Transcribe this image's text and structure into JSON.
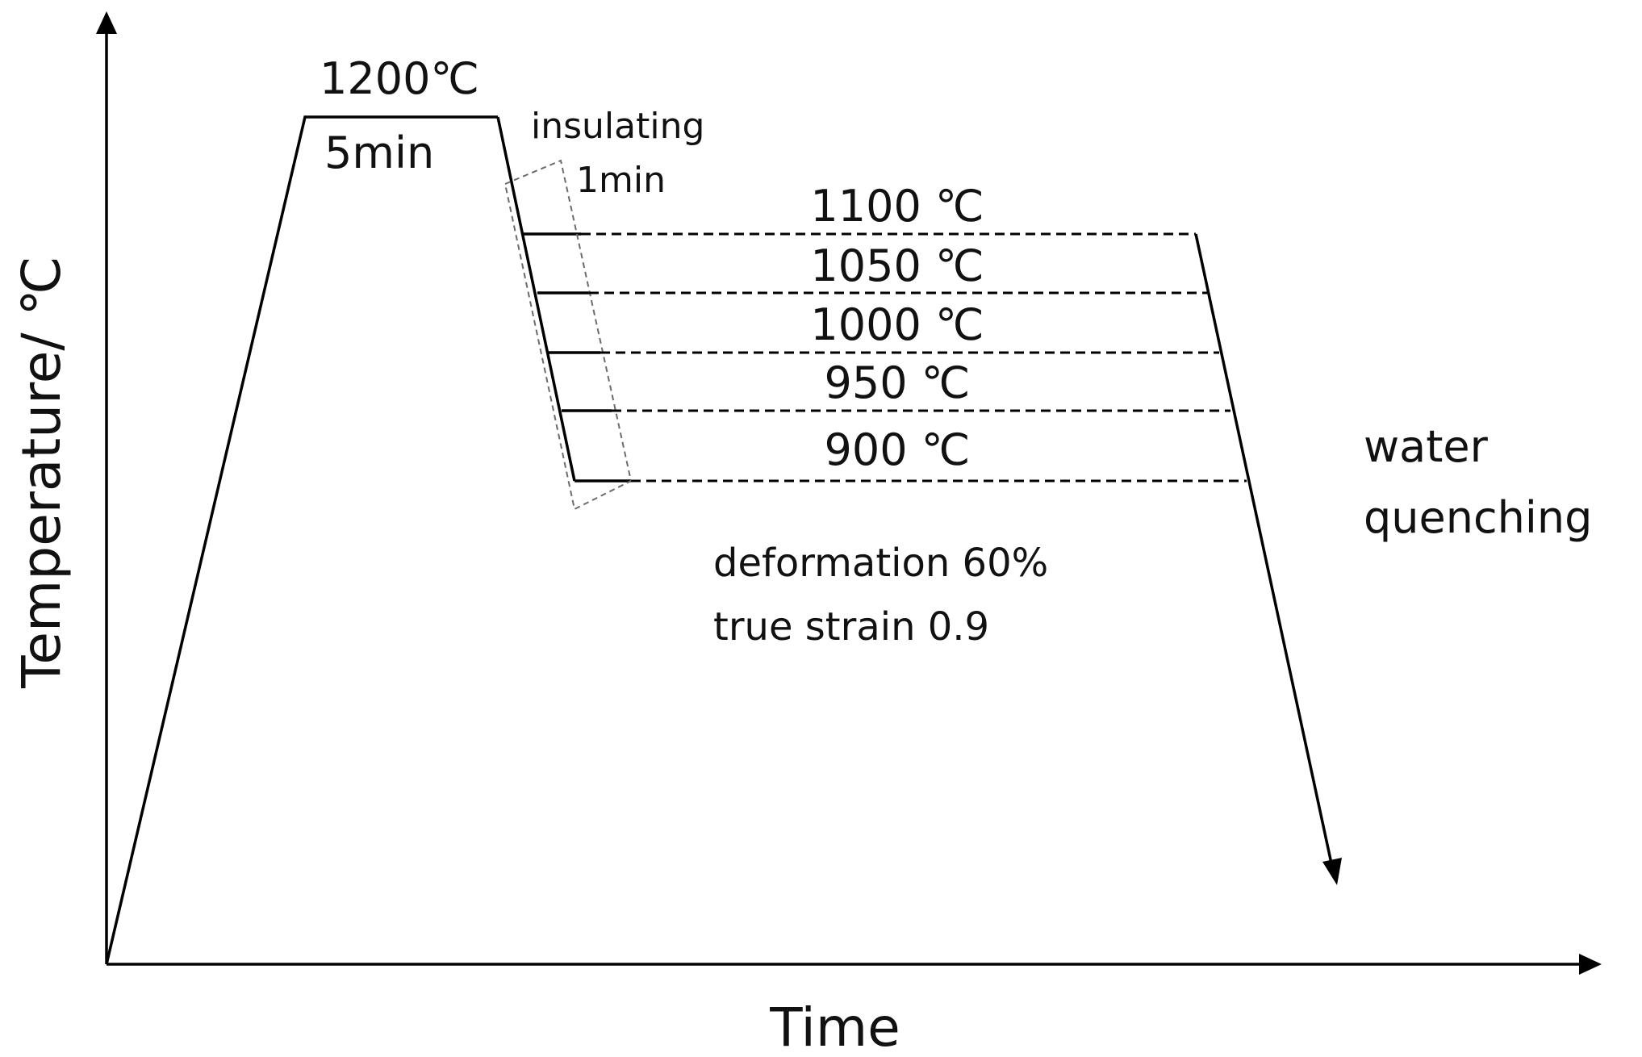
{
  "axes": {
    "x_label": "Time",
    "y_label": "Temperature/ ℃"
  },
  "solution_stage": {
    "temperature": "1200℃",
    "hold_time": "5min"
  },
  "insulating": {
    "label": "insulating",
    "time": "1min"
  },
  "deformation_temps": [
    "1100 ℃",
    "1050 ℃",
    "1000 ℃",
    "950 ℃",
    "900 ℃"
  ],
  "deformation": {
    "line1": "deformation 60%",
    "line2": "true strain 0.9"
  },
  "quench": {
    "line1": "water",
    "line2": "quenching"
  }
}
